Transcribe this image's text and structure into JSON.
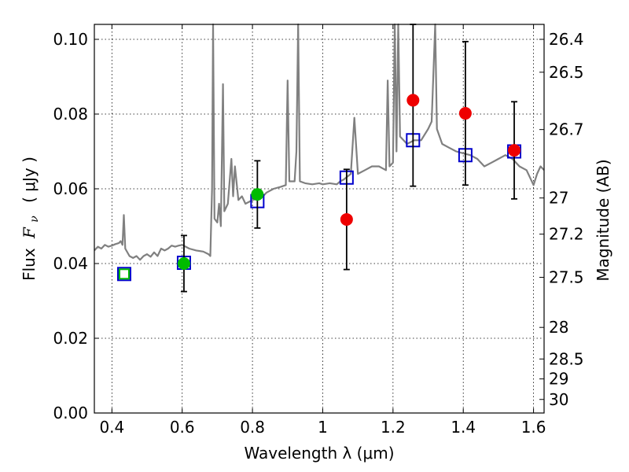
{
  "chart_data": {
    "type": "scatter",
    "xlabel": "Wavelength  λ (μm)",
    "ylabel_text": "Flux ",
    "ylabel_symbol": "F",
    "ylabel_subscript": "ν",
    "ylabel_units": "( μJy )",
    "y2label": "Magnitude (AB)",
    "xlim": [
      0.35,
      1.63
    ],
    "ylim": [
      0.0,
      0.104
    ],
    "grid": true,
    "x_ticks": [
      {
        "value": 0.4,
        "label": "0.4"
      },
      {
        "value": 0.6,
        "label": "0.6"
      },
      {
        "value": 0.8,
        "label": "0.8"
      },
      {
        "value": 1.0,
        "label": "1"
      },
      {
        "value": 1.2,
        "label": "1.2"
      },
      {
        "value": 1.4,
        "label": "1.4"
      },
      {
        "value": 1.6,
        "label": "1.6"
      }
    ],
    "y_ticks": [
      {
        "value": 0.0,
        "label": "0.00"
      },
      {
        "value": 0.02,
        "label": "0.02"
      },
      {
        "value": 0.04,
        "label": "0.04"
      },
      {
        "value": 0.06,
        "label": "0.06"
      },
      {
        "value": 0.08,
        "label": "0.08"
      },
      {
        "value": 0.1,
        "label": "0.10"
      }
    ],
    "mag_ticks": [
      {
        "value": 26.4,
        "label": "26.4"
      },
      {
        "value": 26.5,
        "label": "26.5"
      },
      {
        "value": 26.7,
        "label": "26.7"
      },
      {
        "value": 27.0,
        "label": "27"
      },
      {
        "value": 27.2,
        "label": "27.2"
      },
      {
        "value": 27.5,
        "label": "27.5"
      },
      {
        "value": 28.0,
        "label": "28"
      },
      {
        "value": 28.5,
        "label": "28.5"
      },
      {
        "value": 29.0,
        "label": "29"
      },
      {
        "value": 30.0,
        "label": "30"
      }
    ],
    "mag_zero_point_ujy": 0.003631,
    "colors": {
      "spectrum": "#808080",
      "model_box": "#0000cc",
      "observed_green": "#00bb00",
      "observed_red": "#ee0000",
      "errorbar": "#000000"
    },
    "spectrum": [
      [
        0.35,
        0.0435
      ],
      [
        0.36,
        0.0445
      ],
      [
        0.37,
        0.044
      ],
      [
        0.38,
        0.045
      ],
      [
        0.39,
        0.0445
      ],
      [
        0.4,
        0.0448
      ],
      [
        0.41,
        0.0452
      ],
      [
        0.42,
        0.0455
      ],
      [
        0.425,
        0.046
      ],
      [
        0.43,
        0.045
      ],
      [
        0.434,
        0.053
      ],
      [
        0.438,
        0.044
      ],
      [
        0.45,
        0.042
      ],
      [
        0.46,
        0.0415
      ],
      [
        0.47,
        0.042
      ],
      [
        0.48,
        0.041
      ],
      [
        0.49,
        0.042
      ],
      [
        0.5,
        0.0425
      ],
      [
        0.51,
        0.0418
      ],
      [
        0.52,
        0.043
      ],
      [
        0.53,
        0.042
      ],
      [
        0.54,
        0.044
      ],
      [
        0.55,
        0.0435
      ],
      [
        0.56,
        0.044
      ],
      [
        0.57,
        0.0448
      ],
      [
        0.58,
        0.0445
      ],
      [
        0.59,
        0.0448
      ],
      [
        0.6,
        0.045
      ],
      [
        0.61,
        0.0445
      ],
      [
        0.62,
        0.044
      ],
      [
        0.64,
        0.0435
      ],
      [
        0.66,
        0.0432
      ],
      [
        0.675,
        0.0425
      ],
      [
        0.68,
        0.042
      ],
      [
        0.685,
        0.06
      ],
      [
        0.688,
        0.105
      ],
      [
        0.692,
        0.052
      ],
      [
        0.7,
        0.051
      ],
      [
        0.705,
        0.056
      ],
      [
        0.71,
        0.05
      ],
      [
        0.716,
        0.088
      ],
      [
        0.72,
        0.054
      ],
      [
        0.73,
        0.056
      ],
      [
        0.74,
        0.068
      ],
      [
        0.745,
        0.058
      ],
      [
        0.75,
        0.066
      ],
      [
        0.76,
        0.057
      ],
      [
        0.77,
        0.058
      ],
      [
        0.78,
        0.056
      ],
      [
        0.8,
        0.057
      ],
      [
        0.82,
        0.0575
      ],
      [
        0.83,
        0.058
      ],
      [
        0.84,
        0.059
      ],
      [
        0.86,
        0.06
      ],
      [
        0.88,
        0.0605
      ],
      [
        0.895,
        0.061
      ],
      [
        0.9,
        0.089
      ],
      [
        0.905,
        0.062
      ],
      [
        0.92,
        0.062
      ],
      [
        0.925,
        0.07
      ],
      [
        0.93,
        0.105
      ],
      [
        0.935,
        0.062
      ],
      [
        0.95,
        0.0615
      ],
      [
        0.97,
        0.0612
      ],
      [
        0.99,
        0.0615
      ],
      [
        1.0,
        0.0612
      ],
      [
        1.02,
        0.0615
      ],
      [
        1.04,
        0.0612
      ],
      [
        1.05,
        0.062
      ],
      [
        1.06,
        0.0625
      ],
      [
        1.08,
        0.064
      ],
      [
        1.09,
        0.079
      ],
      [
        1.1,
        0.064
      ],
      [
        1.12,
        0.065
      ],
      [
        1.14,
        0.066
      ],
      [
        1.16,
        0.066
      ],
      [
        1.18,
        0.065
      ],
      [
        1.185,
        0.089
      ],
      [
        1.19,
        0.066
      ],
      [
        1.2,
        0.067
      ],
      [
        1.205,
        0.105
      ],
      [
        1.21,
        0.07
      ],
      [
        1.215,
        0.105
      ],
      [
        1.22,
        0.074
      ],
      [
        1.24,
        0.072
      ],
      [
        1.26,
        0.073
      ],
      [
        1.28,
        0.073
      ],
      [
        1.3,
        0.076
      ],
      [
        1.31,
        0.078
      ],
      [
        1.32,
        0.105
      ],
      [
        1.325,
        0.076
      ],
      [
        1.34,
        0.072
      ],
      [
        1.36,
        0.071
      ],
      [
        1.38,
        0.07
      ],
      [
        1.4,
        0.0695
      ],
      [
        1.42,
        0.069
      ],
      [
        1.44,
        0.068
      ],
      [
        1.46,
        0.066
      ],
      [
        1.48,
        0.067
      ],
      [
        1.5,
        0.068
      ],
      [
        1.52,
        0.069
      ],
      [
        1.54,
        0.068
      ],
      [
        1.56,
        0.066
      ],
      [
        1.58,
        0.065
      ],
      [
        1.6,
        0.061
      ],
      [
        1.61,
        0.064
      ],
      [
        1.62,
        0.066
      ],
      [
        1.63,
        0.065
      ]
    ],
    "model_points": [
      {
        "x": 0.435,
        "y": 0.0372
      },
      {
        "x": 0.605,
        "y": 0.0402
      },
      {
        "x": 0.814,
        "y": 0.0567
      },
      {
        "x": 1.068,
        "y": 0.063
      },
      {
        "x": 1.257,
        "y": 0.073
      },
      {
        "x": 1.406,
        "y": 0.069
      },
      {
        "x": 1.545,
        "y": 0.07
      }
    ],
    "observed_points": [
      {
        "x": 0.435,
        "y": 0.0372,
        "err": 0.0,
        "color": "green"
      },
      {
        "x": 0.605,
        "y": 0.04,
        "err": 0.0075,
        "color": "green"
      },
      {
        "x": 0.814,
        "y": 0.0585,
        "err": 0.009,
        "color": "green"
      },
      {
        "x": 1.068,
        "y": 0.0518,
        "err": 0.0134,
        "color": "red"
      },
      {
        "x": 1.257,
        "y": 0.0837,
        "err": 0.023,
        "color": "red"
      },
      {
        "x": 1.406,
        "y": 0.0802,
        "err": 0.0192,
        "color": "red"
      },
      {
        "x": 1.545,
        "y": 0.0703,
        "err": 0.013,
        "color": "red"
      }
    ]
  }
}
